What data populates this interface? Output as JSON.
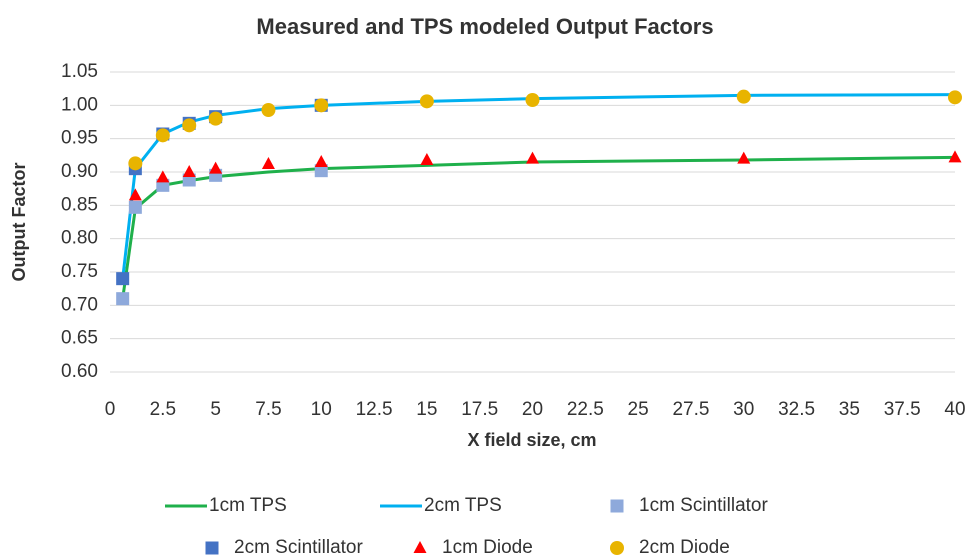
{
  "chart_data": {
    "type": "scatter",
    "title": "Measured and TPS modeled Output Factors",
    "xlabel": "X field size, cm",
    "ylabel": "Output Factor",
    "xlim": [
      0,
      40
    ],
    "xticks": [
      0,
      2.5,
      5,
      7.5,
      10,
      12.5,
      15,
      17.5,
      20,
      22.5,
      25,
      27.5,
      30,
      32.5,
      35,
      37.5,
      40
    ],
    "ylim": [
      0.6,
      1.05
    ],
    "yticks": [
      {
        "value": 0.6,
        "label": "0.60"
      },
      0.65,
      {
        "value": 0.7,
        "label": "0.70"
      },
      0.75,
      {
        "value": 0.8,
        "label": "0.80"
      },
      0.85,
      {
        "value": 0.9,
        "label": "0.90"
      },
      0.95,
      {
        "value": 1,
        "label": "1.00"
      },
      1.05
    ],
    "grid": true,
    "legend": "bottom",
    "series": [
      {
        "name": "1cm TPS",
        "style": "line",
        "color": "#1fb04b",
        "x": [
          0.6,
          1.2,
          2.5,
          3.75,
          5,
          7.5,
          10,
          15,
          20,
          30,
          40
        ],
        "values": [
          0.71,
          0.845,
          0.88,
          0.887,
          0.893,
          0.9,
          0.905,
          0.91,
          0.915,
          0.918,
          0.922
        ]
      },
      {
        "name": "2cm TPS",
        "style": "line",
        "color": "#00b0f0",
        "x": [
          0.6,
          1.2,
          2.5,
          3.75,
          5,
          7.5,
          10,
          15,
          20,
          30,
          40
        ],
        "values": [
          0.74,
          0.905,
          0.957,
          0.975,
          0.985,
          0.995,
          1.0,
          1.006,
          1.01,
          1.015,
          1.016
        ]
      },
      {
        "name": "1cm Scintillator",
        "style": "square",
        "color": "#8ea9db",
        "x": [
          0.6,
          1.2,
          2.5,
          3.75,
          5,
          10
        ],
        "values": [
          0.71,
          0.847,
          0.88,
          0.888,
          0.895,
          0.902
        ]
      },
      {
        "name": "2cm Scintillator",
        "style": "square",
        "color": "#4472c4",
        "x": [
          0.6,
          1.2,
          2.5,
          3.75,
          5,
          10
        ],
        "values": [
          0.74,
          0.905,
          0.957,
          0.973,
          0.983,
          1.0
        ]
      },
      {
        "name": "1cm Diode",
        "style": "triangle",
        "color": "#ff0000",
        "x": [
          1.2,
          2.5,
          3.75,
          5,
          7.5,
          10,
          15,
          20,
          30,
          40
        ],
        "values": [
          0.865,
          0.892,
          0.9,
          0.905,
          0.912,
          0.915,
          0.918,
          0.92,
          0.92,
          0.922
        ]
      },
      {
        "name": "2cm Diode",
        "style": "circle",
        "color": "#e8b400",
        "x": [
          1.2,
          2.5,
          3.75,
          5,
          7.5,
          10,
          15,
          20,
          30,
          40
        ],
        "values": [
          0.913,
          0.955,
          0.97,
          0.98,
          0.993,
          1.0,
          1.006,
          1.008,
          1.013,
          1.012
        ]
      }
    ]
  }
}
